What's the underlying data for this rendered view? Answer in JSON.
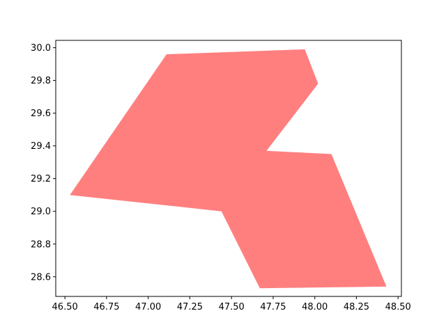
{
  "chart_data": {
    "type": "area",
    "title": "",
    "xlabel": "",
    "ylabel": "",
    "xlim": [
      46.445,
      48.52
    ],
    "ylim": [
      28.48,
      30.045
    ],
    "grid": false,
    "legend": "none",
    "fill_color": "#ff7f7f",
    "xticks": [
      "46.50",
      "46.75",
      "47.00",
      "47.25",
      "47.50",
      "47.75",
      "48.00",
      "48.25",
      "48.50"
    ],
    "yticks": [
      "28.6",
      "28.8",
      "29.0",
      "29.2",
      "29.4",
      "29.6",
      "29.8",
      "30.0"
    ],
    "polygon": [
      {
        "x": 46.53,
        "y": 29.1
      },
      {
        "x": 47.11,
        "y": 29.96
      },
      {
        "x": 47.94,
        "y": 29.99
      },
      {
        "x": 48.02,
        "y": 29.78
      },
      {
        "x": 47.71,
        "y": 29.37
      },
      {
        "x": 48.1,
        "y": 29.35
      },
      {
        "x": 48.43,
        "y": 28.54
      },
      {
        "x": 47.67,
        "y": 28.53
      },
      {
        "x": 47.44,
        "y": 29.0
      }
    ]
  }
}
